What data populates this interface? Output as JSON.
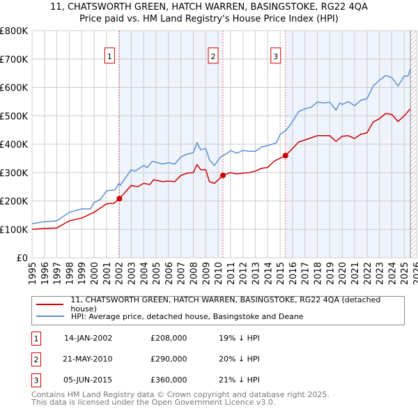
{
  "title": "11, CHATSWORTH GREEN, HATCH WARREN, BASINGSTOKE, RG22 4QA",
  "subtitle": "Price paid vs. HM Land Registry's House Price Index (HPI)",
  "chart_data": {
    "type": "line",
    "xlim": [
      1995,
      2026
    ],
    "ylim": [
      0,
      800000
    ],
    "y_ticks": [
      {
        "v": 0,
        "label": "£0"
      },
      {
        "v": 100000,
        "label": "£100K"
      },
      {
        "v": 200000,
        "label": "£200K"
      },
      {
        "v": 300000,
        "label": "£300K"
      },
      {
        "v": 400000,
        "label": "£400K"
      },
      {
        "v": 500000,
        "label": "£500K"
      },
      {
        "v": 600000,
        "label": "£600K"
      },
      {
        "v": 700000,
        "label": "£700K"
      },
      {
        "v": 800000,
        "label": "£800K"
      }
    ],
    "x_ticks": [
      "1995",
      "1996",
      "1997",
      "1998",
      "1999",
      "2000",
      "2001",
      "2002",
      "2003",
      "2004",
      "2005",
      "2006",
      "2007",
      "2008",
      "2009",
      "2010",
      "2011",
      "2012",
      "2013",
      "2014",
      "2015",
      "2016",
      "2017",
      "2018",
      "2019",
      "2020",
      "2021",
      "2022",
      "2023",
      "2024",
      "2025",
      "2026"
    ],
    "series": [
      {
        "name": "11, CHATSWORTH GREEN, HATCH WARREN, BASINGSTOKE, RG22 4QA (detached house)",
        "color": "#cc0000",
        "x": [
          1995,
          1996,
          1997,
          1998,
          1999,
          2000,
          2001,
          2001.6,
          2002.04,
          2003,
          2003.5,
          2004,
          2004.5,
          2004.8,
          2005.5,
          2006,
          2006.5,
          2007,
          2007.5,
          2008,
          2008.3,
          2008.6,
          2009,
          2009.3,
          2009.7,
          2010.39,
          2011,
          2011.5,
          2012,
          2012.5,
          2013,
          2013.5,
          2014,
          2014.5,
          2015.43,
          2016,
          2016.5,
          2017,
          2018,
          2019,
          2019.5,
          2020,
          2020.5,
          2021,
          2021.5,
          2022,
          2022.5,
          2023,
          2023.5,
          2024,
          2024.5,
          2025,
          2025.5
        ],
        "y": [
          100,
          103,
          105,
          130,
          140,
          160,
          190,
          192,
          208,
          255,
          250,
          262,
          258,
          275,
          268,
          270,
          268,
          290,
          298,
          300,
          328,
          310,
          310,
          268,
          262,
          290,
          300,
          295,
          298,
          300,
          305,
          315,
          318,
          340,
          360,
          385,
          408,
          415,
          430,
          430,
          410,
          428,
          430,
          420,
          435,
          440,
          478,
          490,
          508,
          505,
          480,
          500,
          525
        ]
      },
      {
        "name": "HPI: Average price, detached house, Basingstoke and Deane",
        "color": "#5b8fd0",
        "x": [
          1995,
          1996,
          1997,
          1997.5,
          1998,
          1999,
          1999.7,
          2000,
          2000.5,
          2001,
          2001.7,
          2002,
          2002.1,
          2003,
          2003.3,
          2004,
          2004.3,
          2004.7,
          2005.5,
          2006,
          2006.5,
          2007,
          2007.5,
          2008,
          2008.3,
          2008.6,
          2009,
          2009.3,
          2009.7,
          2010.2,
          2010.8,
          2011,
          2011.5,
          2012,
          2012.5,
          2013,
          2013.5,
          2014,
          2014.7,
          2015,
          2015.5,
          2016,
          2016.5,
          2017,
          2017.5,
          2018,
          2018.5,
          2019,
          2019.5,
          2019.8,
          2020,
          2020.5,
          2021,
          2021.5,
          2022,
          2022.5,
          2023,
          2023.5,
          2024,
          2024.5,
          2025,
          2025.3,
          2025.5
        ],
        "y": [
          120,
          127,
          130,
          145,
          160,
          172,
          172,
          195,
          205,
          235,
          240,
          262,
          255,
          310,
          305,
          325,
          318,
          340,
          330,
          335,
          330,
          355,
          365,
          370,
          405,
          380,
          385,
          345,
          325,
          355,
          370,
          378,
          368,
          378,
          375,
          375,
          390,
          395,
          405,
          435,
          450,
          480,
          515,
          525,
          530,
          548,
          545,
          548,
          520,
          545,
          540,
          550,
          535,
          555,
          560,
          605,
          625,
          642,
          635,
          605,
          640,
          640,
          665
        ]
      }
    ],
    "y_units": "thousands GBP",
    "sales": [
      {
        "id": "1",
        "x": 2002.04,
        "y": 208,
        "date": "14-JAN-2002",
        "price": "£208,000",
        "delta": "19% ↓ HPI"
      },
      {
        "id": "2",
        "x": 2010.39,
        "y": 290,
        "date": "21-MAY-2010",
        "price": "£290,000",
        "delta": "20% ↓ HPI"
      },
      {
        "id": "3",
        "x": 2015.43,
        "y": 360,
        "date": "05-JUN-2015",
        "price": "£360,000",
        "delta": "21% ↓ HPI"
      }
    ],
    "forecast_start": 2025.5,
    "legend_placement": "below"
  },
  "footer": [
    "Contains HM Land Registry data © Crown copyright and database right 2025.",
    "This data is licensed under the Open Government Licence v3.0."
  ]
}
